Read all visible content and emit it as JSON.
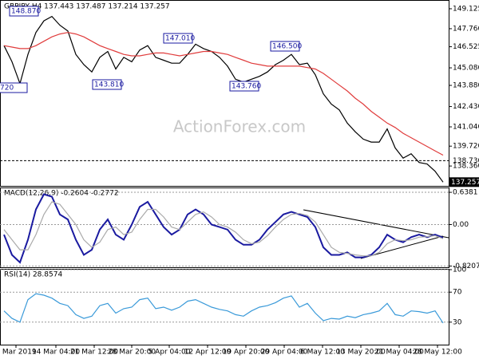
{
  "chart_data": [
    {
      "type": "line",
      "title": "GBPJPY,H4 137.443 137.487 137.214 137.257",
      "watermark": "ActionForex.com",
      "xlim": [
        -0.5,
        55.7
      ],
      "ylim": [
        137.0,
        149.67
      ],
      "yticks": [
        149.125,
        {
          "value": 147.76,
          "label": "147.760"
        },
        146.525,
        {
          "value": 145.08,
          "label": "145.080"
        },
        {
          "value": 143.88,
          "label": "143.880"
        },
        {
          "value": 142.43,
          "label": "142.430"
        },
        {
          "value": 141.04,
          "label": "141.040"
        },
        {
          "value": 139.72,
          "label": "139.720"
        },
        {
          "value": 138.36,
          "label": "138.360"
        }
      ],
      "grid": false,
      "annotations": [
        "148.870",
        "143.810",
        "147.010",
        "143.760",
        "146.500",
        "720"
      ],
      "level": {
        "value": 138.73,
        "label": "138.730"
      },
      "last_price": {
        "value": 137.257,
        "label": "137.257"
      },
      "series": [
        {
          "name": "GBPJPY",
          "color": "#000000",
          "values": [
            146.6,
            145.5,
            144.0,
            146.0,
            147.5,
            148.3,
            148.6,
            148.0,
            147.6,
            146.0,
            145.3,
            144.8,
            145.8,
            146.2,
            145.0,
            145.8,
            145.5,
            146.3,
            146.6,
            145.8,
            145.6,
            145.4,
            145.4,
            146.0,
            146.7,
            146.4,
            146.2,
            145.8,
            145.2,
            144.3,
            144.1,
            144.3,
            144.5,
            144.8,
            145.3,
            145.6,
            146.0,
            145.3,
            145.4,
            144.6,
            143.3,
            142.6,
            142.2,
            141.3,
            140.7,
            140.2,
            140.0,
            140.0,
            140.9,
            139.6,
            138.9,
            139.2,
            138.6,
            138.5,
            138.0,
            137.257
          ]
        },
        {
          "name": "MA",
          "color": "#e03c3c",
          "values": [
            146.6,
            146.5,
            146.4,
            146.4,
            146.6,
            146.9,
            147.2,
            147.4,
            147.5,
            147.4,
            147.2,
            146.9,
            146.6,
            146.4,
            146.2,
            146.0,
            145.9,
            145.9,
            146.0,
            146.1,
            146.1,
            146.0,
            145.9,
            146.0,
            146.1,
            146.2,
            146.2,
            146.1,
            146.0,
            145.8,
            145.6,
            145.4,
            145.3,
            145.2,
            145.2,
            145.2,
            145.2,
            145.2,
            145.1,
            145.0,
            144.7,
            144.3,
            143.9,
            143.5,
            143.0,
            142.6,
            142.1,
            141.7,
            141.3,
            141.0,
            140.6,
            140.3,
            140.0,
            139.7,
            139.4,
            139.1
          ]
        }
      ]
    },
    {
      "type": "line",
      "title": "MACD(12,26,9) -0.2604 -0.2772",
      "xlim": [
        -0.5,
        55.7
      ],
      "ylim": [
        -0.845,
        0.718
      ],
      "yticks": [
        0.6381,
        {
          "value": 0,
          "label": "0.00"
        },
        -0.8207
      ],
      "grid": true,
      "series": [
        {
          "name": "MACD",
          "color": "#1a1aa0",
          "values": [
            -0.2,
            -0.6,
            -0.75,
            -0.3,
            0.3,
            0.6,
            0.55,
            0.2,
            0.1,
            -0.3,
            -0.6,
            -0.5,
            -0.1,
            0.1,
            -0.2,
            -0.3,
            0.0,
            0.35,
            0.45,
            0.2,
            -0.05,
            -0.2,
            -0.1,
            0.2,
            0.3,
            0.2,
            0.0,
            -0.05,
            -0.1,
            -0.3,
            -0.4,
            -0.4,
            -0.3,
            -0.1,
            0.05,
            0.2,
            0.25,
            0.2,
            0.15,
            -0.05,
            -0.45,
            -0.6,
            -0.6,
            -0.55,
            -0.65,
            -0.65,
            -0.6,
            -0.45,
            -0.2,
            -0.3,
            -0.35,
            -0.25,
            -0.2,
            -0.25,
            -0.2,
            -0.26
          ]
        },
        {
          "name": "Signal",
          "color": "#aaaaaa",
          "values": [
            -0.1,
            -0.3,
            -0.5,
            -0.5,
            -0.2,
            0.2,
            0.45,
            0.4,
            0.2,
            0.0,
            -0.3,
            -0.45,
            -0.35,
            -0.1,
            -0.05,
            -0.2,
            -0.15,
            0.1,
            0.3,
            0.3,
            0.15,
            -0.05,
            -0.1,
            0.05,
            0.2,
            0.25,
            0.15,
            0.0,
            -0.05,
            -0.15,
            -0.3,
            -0.38,
            -0.35,
            -0.22,
            -0.05,
            0.1,
            0.2,
            0.22,
            0.18,
            0.05,
            -0.2,
            -0.45,
            -0.55,
            -0.57,
            -0.6,
            -0.62,
            -0.62,
            -0.55,
            -0.38,
            -0.3,
            -0.32,
            -0.3,
            -0.25,
            -0.24,
            -0.22,
            -0.28
          ]
        }
      ]
    },
    {
      "type": "line",
      "title": "RSI(14) 28.8574",
      "xlim": [
        -0.5,
        55.7
      ],
      "ylim": [
        0,
        100
      ],
      "yticks": [
        100,
        70,
        30
      ],
      "grid": true,
      "xticks": [
        {
          "value": 1.5,
          "label": "6 Mar 2019"
        },
        {
          "value": 6.5,
          "label": "14 Mar 04:00"
        },
        {
          "value": 11.3,
          "label": "21 Mar 12:00"
        },
        {
          "value": 16.0,
          "label": "28 Mar 20:00"
        },
        {
          "value": 20.7,
          "label": "5 Apr 04:00"
        },
        {
          "value": 25.5,
          "label": "12 Apr 12:00"
        },
        {
          "value": 30.3,
          "label": "19 Apr 20:00"
        },
        {
          "value": 35.1,
          "label": "29 Apr 04:00"
        },
        {
          "value": 39.9,
          "label": "6 May 12:00"
        },
        {
          "value": 44.7,
          "label": "13 May 20:00"
        },
        {
          "value": 49.5,
          "label": "21 May 04:00"
        },
        {
          "value": 54.3,
          "label": "28 May 12:00"
        }
      ],
      "series": [
        {
          "name": "RSI",
          "color": "#3a9ad9",
          "values": [
            45,
            35,
            30,
            60,
            68,
            66,
            62,
            55,
            52,
            40,
            35,
            38,
            52,
            55,
            42,
            48,
            50,
            60,
            62,
            48,
            50,
            46,
            50,
            58,
            60,
            55,
            50,
            47,
            45,
            40,
            38,
            45,
            50,
            52,
            56,
            62,
            65,
            50,
            55,
            42,
            32,
            35,
            34,
            38,
            36,
            40,
            42,
            45,
            55,
            40,
            38,
            45,
            44,
            42,
            45,
            28.8574
          ]
        }
      ]
    }
  ]
}
